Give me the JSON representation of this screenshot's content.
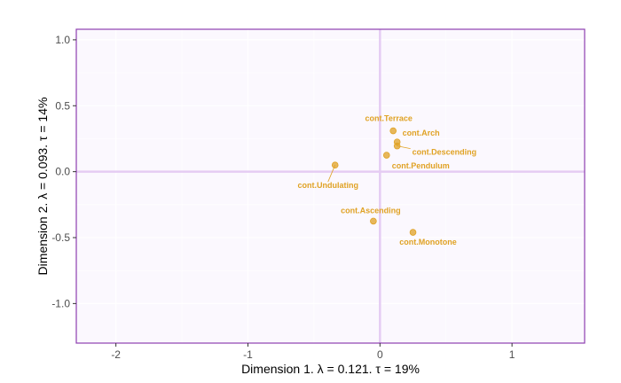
{
  "chart_data": {
    "type": "scatter",
    "title": "",
    "xlabel": "Dimension 1.   λ = 0.121.  τ = 19%",
    "ylabel": "Dimension 2.   λ = 0.093.  τ = 14%",
    "xlim": [
      -2.3,
      1.55
    ],
    "ylim": [
      -1.3,
      1.08
    ],
    "xticks": [
      -2,
      -1,
      0,
      1
    ],
    "xtick_labels": [
      "-2",
      "-1",
      "0",
      "1"
    ],
    "yticks": [
      1.0,
      0.5,
      0.0,
      -0.5,
      -1.0
    ],
    "ytick_labels": [
      "1.0",
      "0.5",
      "0.0",
      "-0.5",
      "-1.0"
    ],
    "grid": true,
    "colors": {
      "points": "#E0A224",
      "panel_background": "#FBF8FE",
      "border": "#8E3FB0",
      "reference_lines": "#E5CCF3",
      "grid": "#ffffff"
    },
    "points": [
      {
        "label": "cont.Terrace",
        "x": 0.1,
        "y": 0.31
      },
      {
        "label": "cont.Arch",
        "x": 0.13,
        "y": 0.225
      },
      {
        "label": "cont.Descending",
        "x": 0.13,
        "y": 0.195
      },
      {
        "label": "cont.Pendulum",
        "x": 0.05,
        "y": 0.125
      },
      {
        "label": "cont.Undulating",
        "x": -0.34,
        "y": 0.05
      },
      {
        "label": "cont.Ascending",
        "x": -0.05,
        "y": -0.375
      },
      {
        "label": "cont.Monotone",
        "x": 0.25,
        "y": -0.46
      }
    ]
  }
}
